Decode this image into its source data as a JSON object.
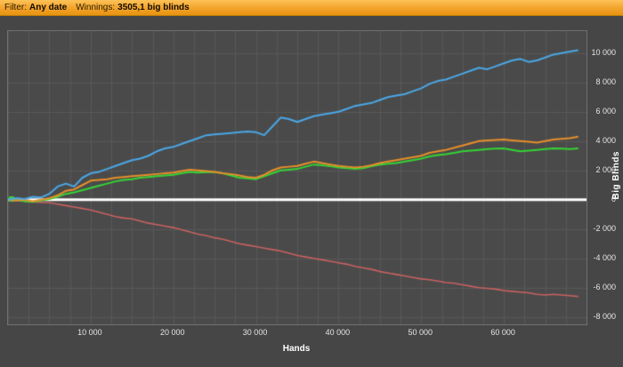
{
  "topbar": {
    "filter_label": "Filter:",
    "filter_value": "Any date",
    "winnings_label": "Winnings:",
    "winnings_value": "3505,1 big blinds"
  },
  "colors": {
    "topbar_accent": "#f2a32a",
    "background": "#464646",
    "plot_background": "#4a4a4a",
    "grid": "#585858",
    "zero_line": "#ffffff",
    "tick_text": "#e4e4e4"
  },
  "chart_data": {
    "type": "line",
    "title": "",
    "xlabel": "Hands",
    "ylabel": "Big Blinds",
    "xlim": [
      0,
      70000
    ],
    "ylim": [
      -8500,
      11500
    ],
    "grid": {
      "on": true,
      "x_step": 2500,
      "y_step": 2000,
      "color": "#585858"
    },
    "legend": "none",
    "zero_line_color": "#ffffff",
    "plot_bg": "#4a4a4a",
    "x_ticks": [
      10000,
      20000,
      30000,
      40000,
      50000,
      60000
    ],
    "x_tick_labels": [
      "10 000",
      "20 000",
      "30 000",
      "40 000",
      "50 000",
      "60 000"
    ],
    "y_ticks": [
      10000,
      8000,
      6000,
      4000,
      2000,
      0,
      -2000,
      -4000,
      -6000,
      -8000
    ],
    "y_tick_labels": [
      "10 000",
      "8 000",
      "6 000",
      "4 000",
      "2 000",
      "0",
      "-2 000",
      "-4 000",
      "-6 000",
      "-8 000"
    ],
    "x_step": 1000,
    "series": [
      {
        "name": "losing-line-red",
        "color": "#c96161",
        "line_width": 1.6,
        "values": [
          0,
          -50,
          -100,
          -150,
          -180,
          -200,
          -300,
          -400,
          -500,
          -600,
          -700,
          -850,
          -1000,
          -1150,
          -1250,
          -1300,
          -1450,
          -1600,
          -1700,
          -1800,
          -1900,
          -2050,
          -2200,
          -2350,
          -2450,
          -2600,
          -2700,
          -2850,
          -3000,
          -3100,
          -3200,
          -3300,
          -3400,
          -3500,
          -3650,
          -3800,
          -3900,
          -4000,
          -4100,
          -4200,
          -4300,
          -4400,
          -4550,
          -4650,
          -4750,
          -4900,
          -5000,
          -5100,
          -5200,
          -5300,
          -5400,
          -5450,
          -5550,
          -5650,
          -5700,
          -5800,
          -5900,
          -6000,
          -6050,
          -6100,
          -6200,
          -6250,
          -6300,
          -6350,
          -6450,
          -6500,
          -6450,
          -6500,
          -6550,
          -6600
        ]
      },
      {
        "name": "winnings-line-green",
        "color": "#35d435",
        "line_width": 2,
        "start_marker": true,
        "values": [
          50,
          0,
          -100,
          -150,
          -50,
          50,
          200,
          400,
          500,
          650,
          800,
          950,
          1100,
          1250,
          1350,
          1400,
          1500,
          1550,
          1600,
          1650,
          1700,
          1800,
          1900,
          1850,
          1880,
          1900,
          1800,
          1650,
          1500,
          1450,
          1400,
          1600,
          1800,
          2000,
          2050,
          2100,
          2250,
          2400,
          2350,
          2280,
          2200,
          2150,
          2100,
          2150,
          2280,
          2400,
          2450,
          2500,
          2600,
          2700,
          2800,
          2950,
          3050,
          3100,
          3200,
          3300,
          3350,
          3400,
          3450,
          3480,
          3500,
          3400,
          3300,
          3350,
          3400,
          3450,
          3500,
          3480,
          3450,
          3500
        ]
      },
      {
        "name": "ev-line-orange",
        "color": "#e88f2a",
        "line_width": 2,
        "values": [
          0,
          -50,
          0,
          -100,
          0,
          100,
          300,
          600,
          700,
          1000,
          1300,
          1350,
          1400,
          1500,
          1550,
          1600,
          1650,
          1700,
          1750,
          1800,
          1850,
          1950,
          2050,
          2000,
          1950,
          1900,
          1800,
          1750,
          1650,
          1550,
          1500,
          1700,
          2000,
          2200,
          2250,
          2300,
          2450,
          2600,
          2500,
          2400,
          2300,
          2250,
          2200,
          2250,
          2350,
          2500,
          2600,
          2700,
          2800,
          2900,
          3000,
          3200,
          3300,
          3400,
          3550,
          3700,
          3850,
          4000,
          4050,
          4080,
          4100,
          4050,
          4000,
          3950,
          3900,
          4000,
          4100,
          4150,
          4200,
          4300
        ]
      },
      {
        "name": "showdown-line-blue",
        "color": "#4aa8e8",
        "line_width": 2,
        "values": [
          0,
          100,
          50,
          200,
          150,
          400,
          900,
          1100,
          900,
          1500,
          1800,
          1900,
          2100,
          2300,
          2500,
          2700,
          2800,
          3000,
          3300,
          3500,
          3600,
          3800,
          4000,
          4200,
          4400,
          4450,
          4500,
          4550,
          4600,
          4650,
          4600,
          4400,
          5000,
          5600,
          5500,
          5300,
          5500,
          5700,
          5800,
          5900,
          6000,
          6200,
          6400,
          6500,
          6600,
          6800,
          7000,
          7100,
          7200,
          7400,
          7600,
          7900,
          8100,
          8200,
          8400,
          8600,
          8800,
          9000,
          8900,
          9100,
          9300,
          9500,
          9600,
          9400,
          9500,
          9700,
          9900,
          10000,
          10100,
          10200
        ]
      }
    ]
  }
}
